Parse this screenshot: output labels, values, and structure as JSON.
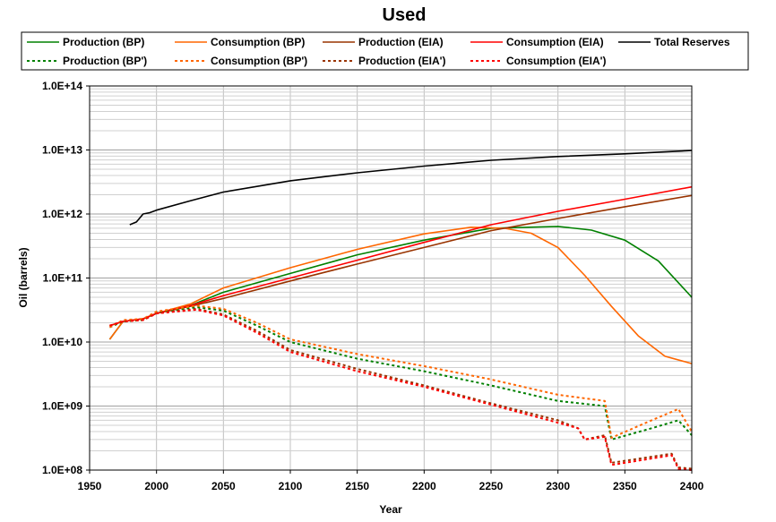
{
  "chart_data": {
    "type": "line",
    "title": "Used",
    "xlabel": "Year",
    "ylabel": "Oil (barrels)",
    "xlim": [
      1950,
      2400
    ],
    "ylim": [
      100000000,
      100000000000000
    ],
    "yscale": "log",
    "x_ticks": [
      1950,
      2000,
      2050,
      2100,
      2150,
      2200,
      2250,
      2300,
      2350,
      2400
    ],
    "y_ticks": [
      {
        "value": 100000000,
        "label": "1.0E+08"
      },
      {
        "value": 1000000000,
        "label": "1.0E+09"
      },
      {
        "value": 10000000000,
        "label": "1.0E+10"
      },
      {
        "value": 100000000000,
        "label": "1.0E+11"
      },
      {
        "value": 1000000000000,
        "label": "1.0E+12"
      },
      {
        "value": 10000000000000,
        "label": "1.0E+13"
      },
      {
        "value": 100000000000000,
        "label": "1.0E+14"
      }
    ],
    "grid": true,
    "legend_position": "top",
    "series": [
      {
        "name": "Production (BP)",
        "color": "#008000",
        "dash": "solid",
        "x": [
          1965,
          1975,
          1990,
          2000,
          2025,
          2050,
          2100,
          2150,
          2200,
          2250,
          2300,
          2325,
          2350,
          2375,
          2400
        ],
        "y": [
          11000000000.0,
          21000000000.0,
          23000000000.0,
          28000000000.0,
          37000000000.0,
          60000000000.0,
          118000000000.0,
          230000000000.0,
          390000000000.0,
          600000000000.0,
          640000000000.0,
          560000000000.0,
          390000000000.0,
          185000000000.0,
          50000000000.0
        ]
      },
      {
        "name": "Consumption (BP)",
        "color": "#FF6600",
        "dash": "solid",
        "x": [
          1965,
          1975,
          1990,
          2000,
          2025,
          2050,
          2100,
          2150,
          2200,
          2235,
          2260,
          2280,
          2300,
          2320,
          2340,
          2360,
          2380,
          2400
        ],
        "y": [
          11000000000.0,
          21000000000.0,
          23000000000.0,
          28000000000.0,
          39000000000.0,
          70000000000.0,
          145000000000.0,
          280000000000.0,
          490000000000.0,
          620000000000.0,
          600000000000.0,
          500000000000.0,
          300000000000.0,
          110000000000.0,
          36000000000.0,
          12500000000.0,
          6000000000.0,
          4600000000.0
        ]
      },
      {
        "name": "Production (EIA)",
        "color": "#993300",
        "dash": "solid",
        "x": [
          1965,
          1975,
          1990,
          2000,
          2025,
          2050,
          2100,
          2150,
          2200,
          2250,
          2300,
          2350,
          2400
        ],
        "y": [
          18000000000.0,
          21000000000.0,
          23000000000.0,
          28000000000.0,
          36000000000.0,
          48000000000.0,
          90000000000.0,
          165000000000.0,
          300000000000.0,
          550000000000.0,
          850000000000.0,
          1300000000000.0,
          1950000000000.0
        ]
      },
      {
        "name": "Consumption (EIA)",
        "color": "#FF0000",
        "dash": "solid",
        "x": [
          1965,
          1975,
          1990,
          2000,
          2025,
          2050,
          2100,
          2150,
          2200,
          2250,
          2300,
          2350,
          2400
        ],
        "y": [
          18000000000.0,
          21000000000.0,
          23000000000.0,
          28000000000.0,
          37000000000.0,
          53000000000.0,
          100000000000.0,
          190000000000.0,
          360000000000.0,
          680000000000.0,
          1100000000000.0,
          1700000000000.0,
          2650000000000.0
        ]
      },
      {
        "name": "Total Reserves",
        "color": "#000000",
        "dash": "solid",
        "x": [
          1980,
          1985,
          1990,
          1995,
          2000,
          2025,
          2050,
          2100,
          2150,
          2200,
          2250,
          2300,
          2350,
          2400
        ],
        "y": [
          680000000000.0,
          750000000000.0,
          1000000000000.0,
          1050000000000.0,
          1150000000000.0,
          1600000000000.0,
          2200000000000.0,
          3300000000000.0,
          4400000000000.0,
          5600000000000.0,
          6900000000000.0,
          7900000000000.0,
          8700000000000.0,
          9800000000000.0
        ]
      },
      {
        "name": "Production (BP')",
        "color": "#008000",
        "dash": "dotted",
        "x": [
          1965,
          1975,
          1990,
          2000,
          2030,
          2050,
          2075,
          2100,
          2150,
          2200,
          2250,
          2300,
          2335,
          2340,
          2370,
          2390,
          2400
        ],
        "y": [
          17000000000.0,
          21000000000.0,
          22000000000.0,
          29000000000.0,
          35000000000.0,
          31000000000.0,
          18000000000.0,
          10000000000.0,
          5500000000.0,
          3500000000.0,
          2100000000.0,
          1200000000.0,
          1000000000.0,
          300000000.0,
          450000000.0,
          600000000.0,
          350000000.0
        ]
      },
      {
        "name": "Consumption (BP')",
        "color": "#FF6600",
        "dash": "dotted",
        "x": [
          1965,
          1975,
          1990,
          2000,
          2030,
          2050,
          2075,
          2100,
          2150,
          2200,
          2250,
          2300,
          2335,
          2340,
          2370,
          2390,
          2400
        ],
        "y": [
          17000000000.0,
          22000000000.0,
          23000000000.0,
          30000000000.0,
          37000000000.0,
          33000000000.0,
          20000000000.0,
          11000000000.0,
          6500000000.0,
          4200000000.0,
          2600000000.0,
          1500000000.0,
          1200000000.0,
          320000000.0,
          600000000.0,
          900000000.0,
          400000000.0
        ]
      },
      {
        "name": "Production (EIA')",
        "color": "#993300",
        "dash": "dotted",
        "x": [
          1965,
          1975,
          1990,
          2000,
          2030,
          2050,
          2075,
          2100,
          2150,
          2200,
          2250,
          2300,
          2315,
          2320,
          2335,
          2340,
          2385,
          2390,
          2400
        ],
        "y": [
          18000000000.0,
          21000000000.0,
          22000000000.0,
          28000000000.0,
          33000000000.0,
          27000000000.0,
          15000000000.0,
          7500000000.0,
          3800000000.0,
          2100000000.0,
          1100000000.0,
          600000000.0,
          450000000.0,
          300000000.0,
          350000000.0,
          130000000.0,
          180000000.0,
          110000000.0,
          105000000.0
        ]
      },
      {
        "name": "Consumption (EIA')",
        "color": "#FF0000",
        "dash": "dotted",
        "x": [
          1965,
          1975,
          1990,
          2000,
          2030,
          2050,
          2075,
          2100,
          2150,
          2200,
          2250,
          2300,
          2315,
          2320,
          2335,
          2340,
          2385,
          2390,
          2400
        ],
        "y": [
          18000000000.0,
          21000000000.0,
          22000000000.0,
          28000000000.0,
          32000000000.0,
          26000000000.0,
          14000000000.0,
          7000000000.0,
          3500000000.0,
          2000000000.0,
          1050000000.0,
          550000000.0,
          450000000.0,
          300000000.0,
          330000000.0,
          120000000.0,
          170000000.0,
          105000000.0,
          100000000.0
        ]
      }
    ]
  }
}
